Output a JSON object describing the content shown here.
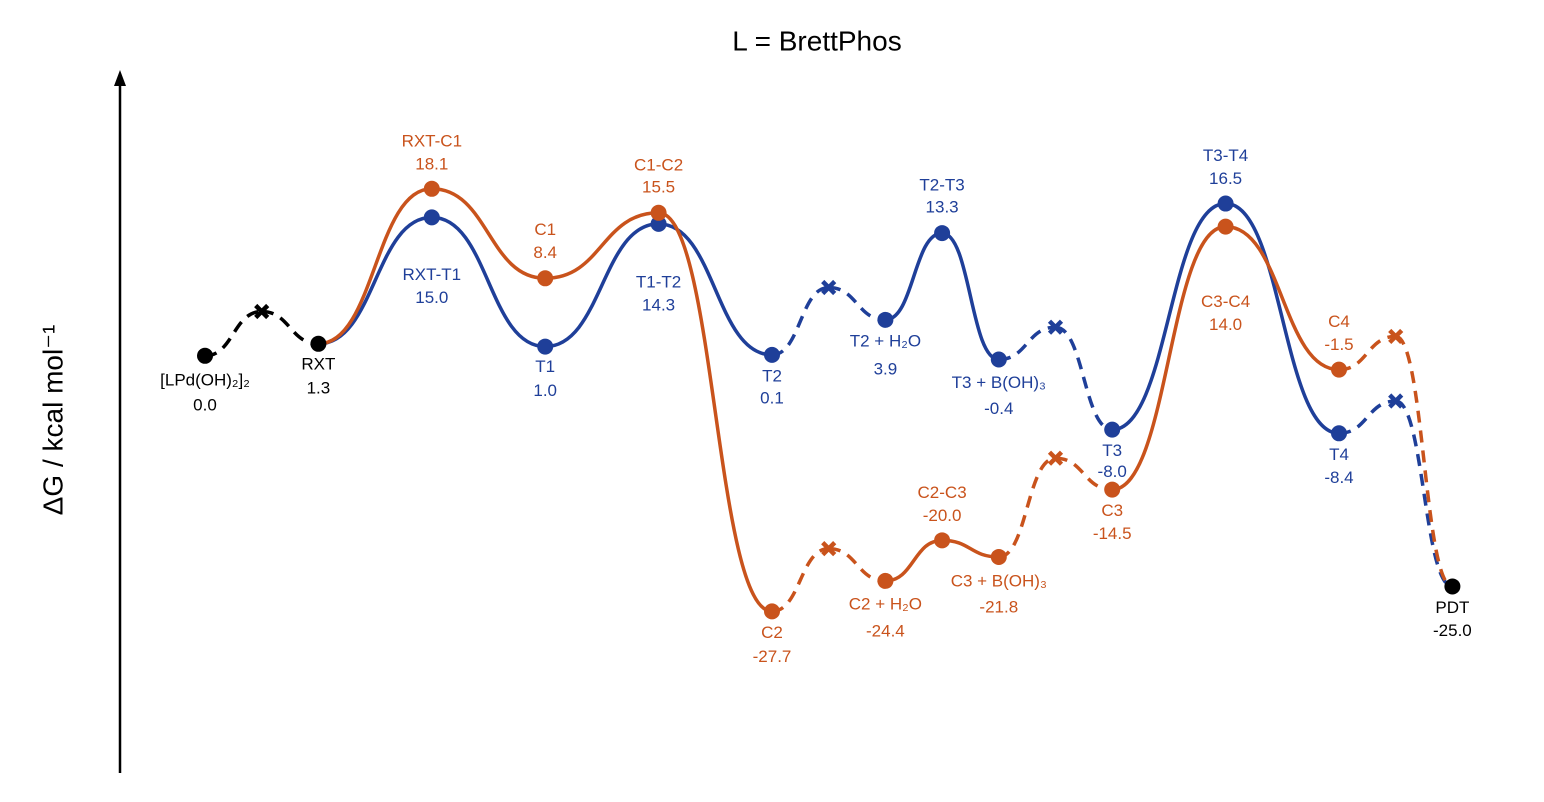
{
  "chart_data": {
    "type": "energy-profile",
    "title": "L = BrettPhos",
    "y_label": "ΔG / kcal mol⁻¹",
    "ylim": [
      -45,
      30
    ],
    "series": [
      {
        "color": "#000000",
        "values": [
          0.0,
          4.8,
          1.3,
          null,
          null,
          null,
          null,
          null,
          null,
          null,
          null,
          null,
          null,
          null,
          null,
          null,
          null,
          null,
          null,
          null,
          null,
          null,
          -25.0
        ],
        "labels": [
          "[LPd(OH)₂]₂",
          null,
          "RXT",
          null,
          null,
          null,
          null,
          null,
          null,
          null,
          null,
          null,
          null,
          null,
          null,
          null,
          null,
          null,
          null,
          null,
          null,
          null,
          "PDT"
        ],
        "value_labels": [
          "0.0",
          null,
          "1.3",
          null,
          null,
          null,
          null,
          null,
          null,
          null,
          null,
          null,
          null,
          null,
          null,
          null,
          null,
          null,
          null,
          null,
          null,
          null,
          "-25.0"
        ]
      },
      {
        "color": "#1f3f99",
        "values": [
          null,
          null,
          null,
          null,
          15.0,
          null,
          1.0,
          null,
          14.3,
          null,
          0.1,
          7.4,
          3.9,
          13.3,
          -0.4,
          3.1,
          -8.0,
          null,
          16.5,
          null,
          -8.4,
          -4.9,
          null
        ],
        "labels": [
          null,
          null,
          null,
          null,
          "RXT-T1",
          null,
          "T1",
          null,
          "T1-T2",
          null,
          "T2",
          null,
          "T2 + H₂O",
          "T2-T3",
          "T3 + B(OH)₃",
          null,
          "T3",
          null,
          "T3-T4",
          null,
          "T4",
          null,
          null
        ],
        "value_labels": [
          null,
          null,
          null,
          null,
          "15.0",
          null,
          "1.0",
          null,
          "14.3",
          null,
          "0.1",
          null,
          "3.9",
          "13.3",
          "-0.4",
          null,
          "-8.0",
          null,
          "16.5",
          null,
          "-8.4",
          null,
          null
        ]
      },
      {
        "color": "#c9531c",
        "values": [
          null,
          null,
          null,
          null,
          18.1,
          null,
          8.4,
          null,
          15.5,
          null,
          -27.7,
          -20.9,
          -24.4,
          -20.0,
          -21.8,
          -11.1,
          -14.5,
          null,
          14.0,
          null,
          -1.5,
          2.1,
          null
        ],
        "labels": [
          null,
          null,
          null,
          null,
          "RXT-C1",
          null,
          "C1",
          null,
          "C1-C2",
          null,
          "C2",
          null,
          "C2 + H₂O",
          "C2-C3",
          "C3 + B(OH)₃",
          null,
          "C3",
          null,
          "C3-C4",
          null,
          "C4",
          null,
          null
        ],
        "value_labels": [
          null,
          null,
          null,
          null,
          "18.1",
          null,
          "8.4",
          null,
          "15.5",
          null,
          "-27.7",
          null,
          "-24.4",
          "-20.0",
          "-21.8",
          null,
          "-14.5",
          null,
          "14.0",
          null,
          "-1.5",
          null,
          null
        ]
      }
    ]
  }
}
